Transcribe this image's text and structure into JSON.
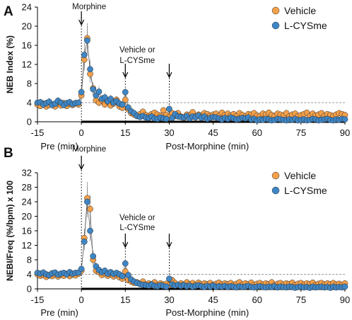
{
  "panels": [
    {
      "letter": "A",
      "colors": {
        "vehicle": "#F4A04A",
        "lcysme": "#3E86C6",
        "err": "#7f7f7f"
      },
      "chart_data": {
        "type": "scatter",
        "ylabel": "NEB Index (%)",
        "xlabel_pre": "Pre (min)",
        "xlabel_post": "Post-Morphine (min)",
        "xlim": [
          -15,
          90
        ],
        "ylim": [
          0,
          24
        ],
        "yticks": [
          "0",
          "4",
          "8",
          "12",
          "16",
          "20",
          "24"
        ],
        "xticks": [
          "-15",
          "0",
          "15",
          "30",
          "45",
          "60",
          "75",
          "90"
        ],
        "legend": [
          "Vehicle",
          "L-CYSme"
        ],
        "threshold": 4,
        "annotations": {
          "morphine": "Morphine",
          "treat_line1": "Vehicle or",
          "treat_line2": "L-CYSme"
        },
        "series": [
          {
            "name": "Vehicle",
            "x": [
              -15,
              -14,
              -13,
              -12,
              -11,
              -10,
              -9,
              -8,
              -7,
              -6,
              -5,
              -4,
              -3,
              -2,
              -1,
              0,
              1,
              2,
              3,
              4,
              5,
              6,
              7,
              8,
              9,
              10,
              11,
              12,
              13,
              14,
              15,
              16,
              17,
              18,
              19,
              20,
              21,
              22,
              23,
              24,
              25,
              26,
              27,
              28,
              29,
              30,
              31,
              32,
              33,
              34,
              35,
              36,
              37,
              38,
              39,
              40,
              41,
              42,
              43,
              44,
              45,
              46,
              47,
              48,
              49,
              50,
              51,
              52,
              53,
              54,
              55,
              56,
              57,
              58,
              59,
              60,
              61,
              62,
              63,
              64,
              65,
              66,
              67,
              68,
              69,
              70,
              71,
              72,
              73,
              74,
              75,
              76,
              77,
              78,
              79,
              80,
              81,
              82,
              83,
              84,
              85,
              86,
              87,
              88,
              89,
              90
            ],
            "values": [
              3.6,
              3.3,
              3.8,
              3.2,
              3.5,
              3.6,
              3.2,
              3.8,
              3.4,
              3.9,
              3.3,
              3.7,
              3.5,
              3.9,
              3.6,
              5.5,
              13,
              17.5,
              10,
              7,
              4.5,
              4,
              4.5,
              3.6,
              4.2,
              3.4,
              3.8,
              4.6,
              3.2,
              2.9,
              4.6,
              2.6,
              1.8,
              1.5,
              1.2,
              1.6,
              2.1,
              1.4,
              1.2,
              1.6,
              1.9,
              1.5,
              1.3,
              2.4,
              1.4,
              1.0,
              1.8,
              1.2,
              1.8,
              1.1,
              0.8,
              1.5,
              1.4,
              2.0,
              1.1,
              1.5,
              1.3,
              1.8,
              1.6,
              1.3,
              1.5,
              1.7,
              1.2,
              1.9,
              1.4,
              1.7,
              1.3,
              1.6,
              1.2,
              1.8,
              1.4,
              1.1,
              1.6,
              1.5,
              1.8,
              1.3,
              1.2,
              1.7,
              1.5,
              1.9,
              1.4,
              1.2,
              1.7,
              1.5,
              1.3,
              1.8,
              1.1,
              1.5,
              1.7,
              1.2,
              1.4,
              1.6,
              1.9,
              1.2,
              1.7,
              1.3,
              1.5,
              1.8,
              1.2,
              1.6,
              1.4,
              1.2,
              1.5,
              1.8,
              1.6,
              1.4
            ]
          },
          {
            "name": "L-CYSme",
            "x": [
              -15,
              -14,
              -13,
              -12,
              -11,
              -10,
              -9,
              -8,
              -7,
              -6,
              -5,
              -4,
              -3,
              -2,
              -1,
              0,
              1,
              2,
              3,
              4,
              5,
              6,
              7,
              8,
              9,
              10,
              11,
              12,
              13,
              14,
              15,
              16,
              17,
              18,
              19,
              20,
              21,
              22,
              23,
              24,
              25,
              26,
              27,
              28,
              29,
              30,
              31,
              32,
              33,
              34,
              35,
              36,
              37,
              38,
              39,
              40,
              41,
              42,
              43,
              44,
              45,
              46,
              47,
              48,
              49,
              50,
              51,
              52,
              53,
              54,
              55,
              56,
              57,
              58,
              59,
              60,
              61,
              62,
              63,
              64,
              65,
              66,
              67,
              68,
              69,
              70,
              71,
              72,
              73,
              74,
              75,
              76,
              77,
              78,
              79,
              80,
              81,
              82,
              83,
              84,
              85,
              86,
              87,
              88,
              89,
              90
            ],
            "values": [
              4.0,
              4.1,
              3.6,
              3.9,
              4.2,
              3.5,
              3.8,
              4.4,
              4.0,
              3.5,
              3.9,
              4.1,
              3.7,
              3.9,
              4.0,
              6.2,
              14,
              17,
              11,
              6.8,
              5.5,
              6.3,
              4.8,
              5.1,
              4.3,
              4.8,
              4.0,
              4.3,
              3.8,
              3.6,
              6.2,
              3.0,
              2.2,
              1.8,
              1.2,
              1.0,
              1.2,
              0.9,
              0.8,
              1.1,
              0.7,
              0.6,
              0.9,
              0.7,
              0.6,
              2.7,
              0.8,
              1.6,
              1.1,
              1.0,
              0.9,
              1.2,
              0.7,
              1.1,
              0.9,
              1.3,
              0.8,
              1.1,
              0.6,
              0.8,
              1.0,
              0.9,
              0.7,
              0.5,
              0.8,
              0.6,
              0.9,
              0.7,
              0.5,
              0.6,
              0.8,
              0.7,
              0.9,
              0.5,
              0.6,
              0.3,
              0.5,
              0.4,
              0.6,
              0.5,
              0.3,
              0.4,
              0.6,
              0.5,
              0.4,
              0.3,
              0.5,
              0.4,
              0.6,
              0.3,
              0.4,
              0.5,
              0.3,
              0.4,
              0.6,
              0.5,
              0.3,
              0.4,
              0.5,
              0.6,
              0.4,
              0.3,
              0.5,
              0.4,
              0.6,
              0.5
            ]
          }
        ]
      }
    },
    {
      "letter": "B",
      "colors": {
        "vehicle": "#F4A04A",
        "lcysme": "#3E86C6",
        "err": "#7f7f7f"
      },
      "chart_data": {
        "type": "scatter",
        "ylabel": "NEBI/Freq (%/bpm) x 100",
        "xlabel_pre": "Pre (min)",
        "xlabel_post": "Post-Morphine (min)",
        "xlim": [
          -15,
          90
        ],
        "ylim": [
          0,
          32
        ],
        "yticks": [
          "0",
          "4",
          "8",
          "12",
          "16",
          "20",
          "24",
          "28",
          "32"
        ],
        "xticks": [
          "-15",
          "0",
          "15",
          "30",
          "45",
          "60",
          "75",
          "90"
        ],
        "legend": [
          "Vehicle",
          "L-CYSme"
        ],
        "threshold": 4,
        "annotations": {
          "morphine": "Morphine",
          "treat_line1": "Vehicle or",
          "treat_line2": "L-CYSme"
        },
        "series": [
          {
            "name": "Vehicle",
            "x": [
              -15,
              -14,
              -13,
              -12,
              -11,
              -10,
              -9,
              -8,
              -7,
              -6,
              -5,
              -4,
              -3,
              -2,
              -1,
              0,
              1,
              2,
              3,
              4,
              5,
              6,
              7,
              8,
              9,
              10,
              11,
              12,
              13,
              14,
              15,
              16,
              17,
              18,
              19,
              20,
              21,
              22,
              23,
              24,
              25,
              26,
              27,
              28,
              29,
              30,
              31,
              32,
              33,
              34,
              35,
              36,
              37,
              38,
              39,
              40,
              41,
              42,
              43,
              44,
              45,
              46,
              47,
              48,
              49,
              50,
              51,
              52,
              53,
              54,
              55,
              56,
              57,
              58,
              59,
              60,
              61,
              62,
              63,
              64,
              65,
              66,
              67,
              68,
              69,
              70,
              71,
              72,
              73,
              74,
              75,
              76,
              77,
              78,
              79,
              80,
              81,
              82,
              83,
              84,
              85,
              86,
              87,
              88,
              89,
              90
            ],
            "values": [
              4.0,
              3.6,
              3.8,
              3.3,
              3.7,
              3.5,
              3.9,
              3.4,
              3.8,
              3.6,
              4.1,
              3.5,
              3.9,
              3.7,
              4.2,
              5.0,
              14,
              25,
              22,
              8,
              5.0,
              4.6,
              3.8,
              4.2,
              3.6,
              4.0,
              3.4,
              3.8,
              3.2,
              2.8,
              4.8,
              2.4,
              2.0,
              1.6,
              1.8,
              1.4,
              2.0,
              1.2,
              1.5,
              1.3,
              1.8,
              1.1,
              1.5,
              1.2,
              1.4,
              1.0,
              2.4,
              1.6,
              1.0,
              1.5,
              1.2,
              1.8,
              1.3,
              1.6,
              1.1,
              1.7,
              1.2,
              1.5,
              1.3,
              1.6,
              1.1,
              1.4,
              1.7,
              1.2,
              1.5,
              1.3,
              1.6,
              1.1,
              1.4,
              1.8,
              1.2,
              1.5,
              1.3,
              1.7,
              1.1,
              1.4,
              1.6,
              1.2,
              1.5,
              1.3,
              1.8,
              1.1,
              1.4,
              1.6,
              1.2,
              1.5,
              1.3,
              1.7,
              1.1,
              1.4,
              1.6,
              1.2,
              1.5,
              1.3,
              1.7,
              1.1,
              1.4,
              1.6,
              1.2,
              1.5,
              1.3,
              1.6,
              1.2,
              1.4,
              1.1,
              1.5
            ]
          },
          {
            "name": "L-CYSme",
            "x": [
              -15,
              -14,
              -13,
              -12,
              -11,
              -10,
              -9,
              -8,
              -7,
              -6,
              -5,
              -4,
              -3,
              -2,
              -1,
              0,
              1,
              2,
              3,
              4,
              5,
              6,
              7,
              8,
              9,
              10,
              11,
              12,
              13,
              14,
              15,
              16,
              17,
              18,
              19,
              20,
              21,
              22,
              23,
              24,
              25,
              26,
              27,
              28,
              29,
              30,
              31,
              32,
              33,
              34,
              35,
              36,
              37,
              38,
              39,
              40,
              41,
              42,
              43,
              44,
              45,
              46,
              47,
              48,
              49,
              50,
              51,
              52,
              53,
              54,
              55,
              56,
              57,
              58,
              59,
              60,
              61,
              62,
              63,
              64,
              65,
              66,
              67,
              68,
              69,
              70,
              71,
              72,
              73,
              74,
              75,
              76,
              77,
              78,
              79,
              80,
              81,
              82,
              83,
              84,
              85,
              86,
              87,
              88,
              89,
              90
            ],
            "values": [
              4.4,
              4.2,
              4.5,
              4.0,
              3.8,
              4.3,
              4.5,
              3.9,
              4.2,
              4.4,
              4.0,
              4.6,
              4.2,
              4.4,
              4.5,
              5.5,
              13,
              24,
              16,
              9,
              6.2,
              5.2,
              4.6,
              5.0,
              4.2,
              4.6,
              4.1,
              4.4,
              4.0,
              3.5,
              7.0,
              3.8,
              2.6,
              2.0,
              1.6,
              1.3,
              1.1,
              1.0,
              0.9,
              1.2,
              0.8,
              0.7,
              1.0,
              0.8,
              0.6,
              2.8,
              1.2,
              0.9,
              1.1,
              0.8,
              1.0,
              0.7,
              0.9,
              0.6,
              0.8,
              1.0,
              0.7,
              0.5,
              0.8,
              0.6,
              0.9,
              0.5,
              0.7,
              0.6,
              0.8,
              0.5,
              0.7,
              0.6,
              0.4,
              0.7,
              0.5,
              0.6,
              0.8,
              0.5,
              0.4,
              0.6,
              0.7,
              0.5,
              0.4,
              0.6,
              0.5,
              0.7,
              0.4,
              0.6,
              0.5,
              0.4,
              0.6,
              0.5,
              0.3,
              0.5,
              0.6,
              0.4,
              0.5,
              0.3,
              0.6,
              0.4,
              0.5,
              0.6,
              0.4,
              0.5,
              0.3,
              0.6,
              0.4,
              0.5,
              0.4,
              0.6
            ]
          }
        ]
      }
    }
  ]
}
